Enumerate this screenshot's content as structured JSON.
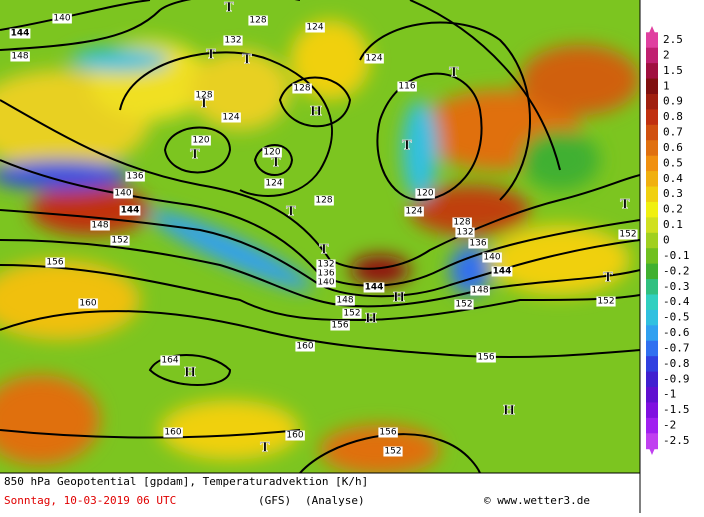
{
  "map": {
    "caption": "850 hPa Geopotential [gpdam], Temperaturadvektion [K/h]",
    "date": "Sonntag, 10-03-2019  06 UTC",
    "model": "(GFS)",
    "run": "(Analyse)",
    "copyright": "© www.wetter3.de",
    "colorbar": [
      {
        "label": "2.5",
        "color": "#e040a0"
      },
      {
        "label": "2",
        "color": "#c02070"
      },
      {
        "label": "1.5",
        "color": "#a01040"
      },
      {
        "label": "1",
        "color": "#801010"
      },
      {
        "label": "0.9",
        "color": "#a02010"
      },
      {
        "label": "0.8",
        "color": "#c03010"
      },
      {
        "label": "0.7",
        "color": "#d05010"
      },
      {
        "label": "0.6",
        "color": "#e07010"
      },
      {
        "label": "0.5",
        "color": "#f09010"
      },
      {
        "label": "0.4",
        "color": "#f0b010"
      },
      {
        "label": "0.3",
        "color": "#f0d010"
      },
      {
        "label": "0.2",
        "color": "#f0f010"
      },
      {
        "label": "0.1",
        "color": "#d0e020"
      },
      {
        "label": "0",
        "color": "#a0d020"
      },
      {
        "label": "-0.1",
        "color": "#70c020"
      },
      {
        "label": "-0.2",
        "color": "#40b030"
      },
      {
        "label": "-0.3",
        "color": "#30c080"
      },
      {
        "label": "-0.4",
        "color": "#30d0c0"
      },
      {
        "label": "-0.5",
        "color": "#30c0e0"
      },
      {
        "label": "-0.6",
        "color": "#30a0f0"
      },
      {
        "label": "-0.7",
        "color": "#3070f0"
      },
      {
        "label": "-0.8",
        "color": "#3040e0"
      },
      {
        "label": "-0.9",
        "color": "#4020d0"
      },
      {
        "label": "-1",
        "color": "#6010d0"
      },
      {
        "label": "-1.5",
        "color": "#8010e0"
      },
      {
        "label": "-2",
        "color": "#a020f0"
      },
      {
        "label": "-2.5",
        "color": "#c040f0"
      }
    ],
    "contour_labels": [
      "140",
      "144",
      "148",
      "128",
      "132",
      "124",
      "124",
      "128",
      "124",
      "128",
      "120",
      "120",
      "124",
      "116",
      "136",
      "140",
      "144",
      "148",
      "152",
      "156",
      "160",
      "164",
      "160",
      "160",
      "156",
      "152",
      "160",
      "156",
      "152",
      "148",
      "144",
      "140",
      "136",
      "132",
      "128",
      "124",
      "120",
      "128",
      "132",
      "136",
      "140",
      "144",
      "148",
      "152",
      "156",
      "152",
      "152"
    ],
    "pressure_centers": [
      "H",
      "H",
      "H",
      "H",
      "H",
      "T",
      "T",
      "T",
      "T",
      "T",
      "T",
      "T",
      "T",
      "T",
      "T",
      "T",
      "T",
      "T"
    ]
  }
}
